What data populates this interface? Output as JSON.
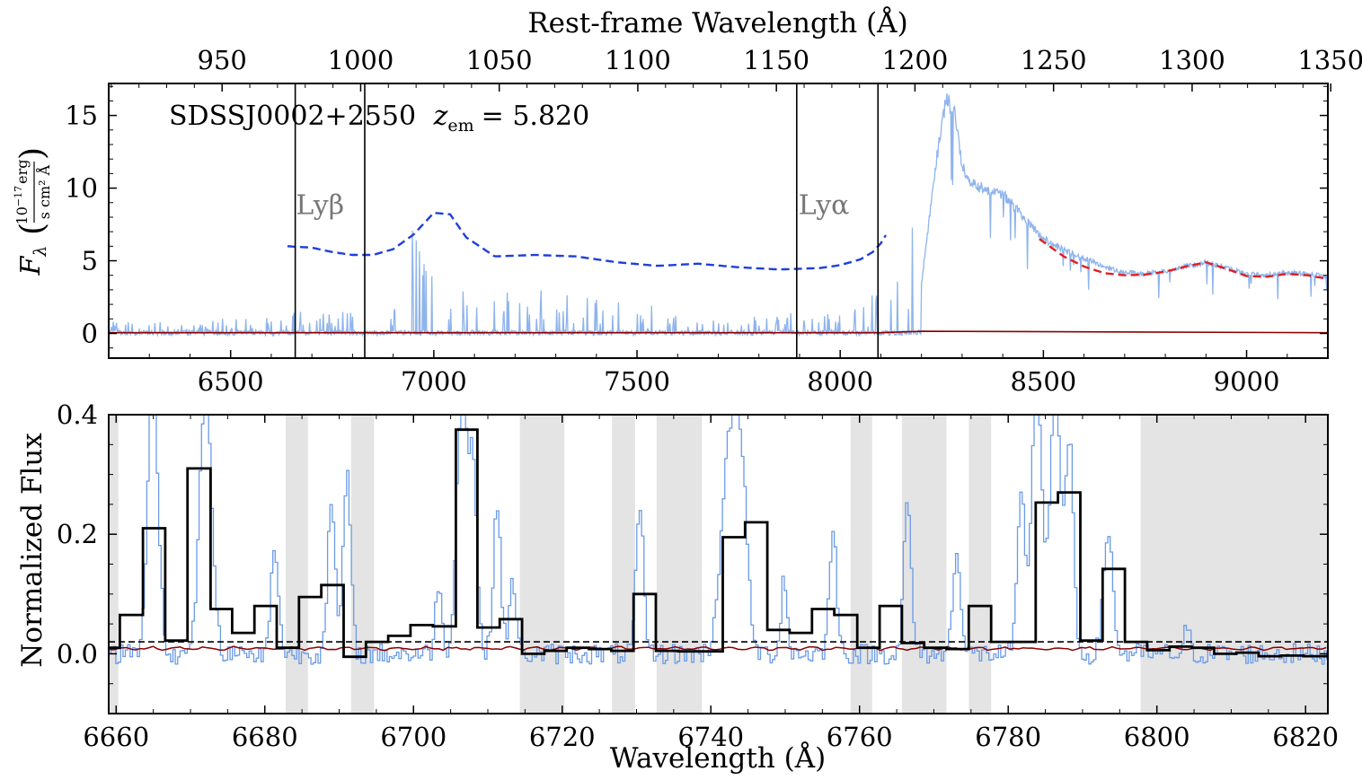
{
  "colors": {
    "spectrum": "#8fb4ec",
    "spectrum_zoom": "#6a9be6",
    "error": "#8b0000",
    "continuum_blue": "#1f3fd9",
    "continuum_red": "#e02020",
    "shade": "#e4e4e4",
    "markers": "#000000"
  },
  "chart_data": [
    {
      "type": "line",
      "panel": "top",
      "annotation": "SDSSJ0002+2550 z_em = 5.820",
      "annotation_name": "SDSSJ0002+2550",
      "annotation_z": "= 5.820",
      "xlabel": "",
      "ylabel": "F_λ (10^-17 erg / s cm² Å)",
      "ylabel_sym": "F",
      "ylabel_num": "10",
      "ylabel_exp": "−17",
      "ylabel_unit_top": "erg",
      "ylabel_den": "s cm² Å",
      "xlim": [
        6200,
        9200
      ],
      "ylim": [
        -1.7,
        17.2
      ],
      "xticks": [
        6500,
        7000,
        7500,
        8000,
        8500,
        9000
      ],
      "yticks": [
        0,
        5,
        10,
        15
      ],
      "top_axis": {
        "label": "Rest-frame Wavelength (Å)",
        "ticks": [
          950,
          1000,
          1050,
          1100,
          1150,
          1200,
          1250,
          1300,
          1350
        ],
        "z": 5.82
      },
      "vertical_lines": [
        6659,
        6830,
        7893,
        8093
      ],
      "line_labels": [
        {
          "text": "Lyβ",
          "x": 6720,
          "y": 8.2
        },
        {
          "text": "Lyα",
          "x": 7960,
          "y": 8.2
        }
      ],
      "series": [
        {
          "role": "flux",
          "x": [
            6200,
            6300,
            6400,
            6500,
            6600,
            6660,
            6700,
            6800,
            6900,
            6950,
            7000,
            7050,
            7100,
            7200,
            7300,
            7400,
            7500,
            7600,
            7700,
            7800,
            7900,
            8000,
            8100,
            8150,
            8180,
            8200,
            8220,
            8240,
            8260,
            8280,
            8300,
            8320,
            8350,
            8400,
            8450,
            8500,
            8550,
            8600,
            8650,
            8700,
            8750,
            8800,
            8850,
            8900,
            8950,
            9000,
            9050,
            9100,
            9150,
            9200
          ],
          "y": [
            0.1,
            0.2,
            0.1,
            0.3,
            0.2,
            0.8,
            0.3,
            0.4,
            1.0,
            2.5,
            1.8,
            1.2,
            0.6,
            0.8,
            1.0,
            0.6,
            0.7,
            0.3,
            0.2,
            0.2,
            0.4,
            0.4,
            0.8,
            1.5,
            2.5,
            3.5,
            8.0,
            12.5,
            16.0,
            15.5,
            11.5,
            10.5,
            10.0,
            9.6,
            8.0,
            6.5,
            5.7,
            5.2,
            4.6,
            4.2,
            4.1,
            4.3,
            4.6,
            4.9,
            4.5,
            4.1,
            4.0,
            4.2,
            4.1,
            3.9
          ]
        },
        {
          "role": "error",
          "x": [
            6200,
            8100,
            8200,
            9200
          ],
          "y": [
            0.05,
            0.05,
            0.15,
            0.05
          ]
        },
        {
          "role": "continuum_blue",
          "x": [
            6640,
            6700,
            6750,
            6800,
            6850,
            6900,
            6950,
            7000,
            7040,
            7080,
            7150,
            7250,
            7350,
            7450,
            7550,
            7650,
            7750,
            7850,
            7950,
            8000,
            8050,
            8080,
            8100,
            8115
          ],
          "y": [
            6.0,
            5.9,
            5.6,
            5.4,
            5.4,
            5.8,
            6.8,
            8.3,
            8.2,
            6.6,
            5.3,
            5.4,
            5.3,
            4.9,
            4.65,
            4.8,
            4.55,
            4.4,
            4.5,
            4.7,
            5.1,
            5.6,
            6.2,
            6.9
          ]
        },
        {
          "role": "continuum_red",
          "x": [
            8490,
            8550,
            8600,
            8650,
            8700,
            8750,
            8800,
            8850,
            8900,
            8950,
            9000,
            9050,
            9100,
            9150,
            9200
          ],
          "y": [
            6.5,
            5.3,
            4.6,
            4.15,
            4.0,
            4.05,
            4.25,
            4.6,
            4.9,
            4.45,
            3.95,
            3.9,
            4.1,
            4.0,
            3.75
          ]
        }
      ]
    },
    {
      "type": "line",
      "panel": "bottom",
      "xlabel": "Wavelength (Å)",
      "ylabel": "Normalized Flux",
      "xlim": [
        6659,
        6823
      ],
      "ylim": [
        -0.1,
        0.4
      ],
      "xticks": [
        6660,
        6680,
        6700,
        6720,
        6740,
        6760,
        6780,
        6800,
        6820
      ],
      "yticks": [
        0.0,
        0.2,
        0.4
      ],
      "ytick_labels": [
        "0.0",
        "0.2",
        "0.4"
      ],
      "hline": 0.02,
      "shaded_ranges": [
        [
          6659,
          6660.3
        ],
        [
          6682.8,
          6685.8
        ],
        [
          6691.6,
          6694.7
        ],
        [
          6714.3,
          6720.3
        ],
        [
          6726.7,
          6729.8
        ],
        [
          6732.7,
          6738.8
        ],
        [
          6758.8,
          6761.7
        ],
        [
          6765.7,
          6771.7
        ],
        [
          6774.7,
          6777.7
        ],
        [
          6797.8,
          6823
        ]
      ],
      "binned": {
        "edges": [
          6659,
          6660.5,
          6663.6,
          6666.6,
          6669.6,
          6672.7,
          6675.6,
          6678.6,
          6681.6,
          6684.6,
          6687.6,
          6690.6,
          6693.6,
          6696.6,
          6699.6,
          6702.6,
          6705.7,
          6708.6,
          6711.6,
          6714.6,
          6717.6,
          6720.6,
          6723.6,
          6726.6,
          6729.6,
          6732.6,
          6735.6,
          6738.6,
          6741.6,
          6744.6,
          6747.6,
          6750.6,
          6753.6,
          6756.6,
          6759.7,
          6762.7,
          6765.7,
          6768.7,
          6771.7,
          6774.7,
          6777.7,
          6780.7,
          6783.7,
          6786.7,
          6789.7,
          6792.7,
          6795.7,
          6798.7,
          6801.7,
          6804.7,
          6807.7,
          6810.7,
          6813.7,
          6816.7,
          6819.7,
          6823
        ],
        "values": [
          0.01,
          0.065,
          0.21,
          0.022,
          0.31,
          0.075,
          0.035,
          0.08,
          0.01,
          0.095,
          0.115,
          -0.005,
          0.02,
          0.03,
          0.048,
          0.046,
          0.375,
          0.044,
          0.058,
          0.0,
          0.005,
          0.01,
          0.008,
          0.005,
          0.1,
          0.005,
          0.004,
          0.004,
          0.195,
          0.22,
          0.04,
          0.035,
          0.075,
          0.065,
          0.01,
          0.08,
          0.018,
          0.01,
          0.008,
          0.08,
          0.02,
          0.02,
          0.253,
          0.27,
          0.022,
          0.142,
          0.02,
          0.006,
          0.012,
          0.01,
          0.0,
          0.002,
          -0.004,
          -0.003,
          -0.004,
          0.002
        ]
      },
      "peaks": [
        {
          "x": 6664.8,
          "h": 0.45,
          "w": 0.7
        },
        {
          "x": 6671.9,
          "h": 0.45,
          "w": 0.8
        },
        {
          "x": 6681.2,
          "h": 0.18,
          "w": 0.5
        },
        {
          "x": 6688.8,
          "h": 0.25,
          "w": 0.5
        },
        {
          "x": 6690.9,
          "h": 0.3,
          "w": 0.5
        },
        {
          "x": 6703.2,
          "h": 0.12,
          "w": 0.4
        },
        {
          "x": 6706.4,
          "h": 0.45,
          "w": 0.7
        },
        {
          "x": 6707.9,
          "h": 0.3,
          "w": 0.5
        },
        {
          "x": 6711.1,
          "h": 0.25,
          "w": 0.5
        },
        {
          "x": 6713.2,
          "h": 0.13,
          "w": 0.4
        },
        {
          "x": 6730.3,
          "h": 0.24,
          "w": 0.5
        },
        {
          "x": 6742.2,
          "h": 0.33,
          "w": 1.0
        },
        {
          "x": 6743.9,
          "h": 0.3,
          "w": 0.8
        },
        {
          "x": 6749.7,
          "h": 0.13,
          "w": 0.4
        },
        {
          "x": 6756.3,
          "h": 0.2,
          "w": 0.5
        },
        {
          "x": 6766.3,
          "h": 0.25,
          "w": 0.5
        },
        {
          "x": 6772.9,
          "h": 0.18,
          "w": 0.5
        },
        {
          "x": 6781.6,
          "h": 0.26,
          "w": 0.5
        },
        {
          "x": 6783.7,
          "h": 0.45,
          "w": 0.7
        },
        {
          "x": 6786.2,
          "h": 0.45,
          "w": 0.7
        },
        {
          "x": 6788.1,
          "h": 0.36,
          "w": 0.5
        },
        {
          "x": 6793.3,
          "h": 0.21,
          "w": 0.6
        },
        {
          "x": 6803.9,
          "h": 0.04,
          "w": 0.4
        }
      ]
    }
  ]
}
